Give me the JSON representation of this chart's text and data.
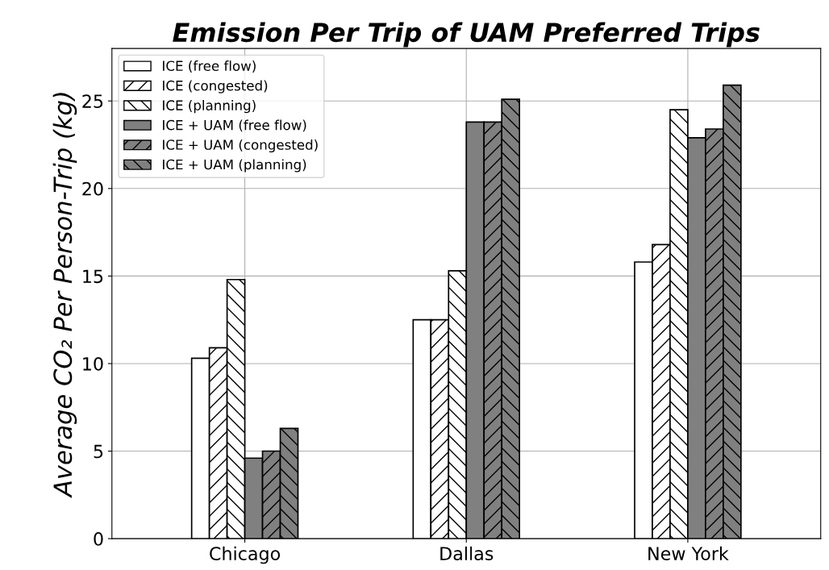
{
  "chart_data": {
    "type": "bar",
    "title": "Emission Per Trip of UAM Preferred Trips",
    "ylabel": "Average CO₂ Per Person-Trip (kg)",
    "categories": [
      "Chicago",
      "Dallas",
      "New York"
    ],
    "series": [
      {
        "name": "ICE (free flow)",
        "color": "#ffffff",
        "values": [
          10.3,
          12.5,
          15.8
        ]
      },
      {
        "name": "ICE (congested)",
        "color": "#ffffff",
        "values": [
          10.9,
          12.5,
          16.8
        ]
      },
      {
        "name": "ICE (planning)",
        "color": "#ffffff",
        "values": [
          14.8,
          15.3,
          24.5
        ]
      },
      {
        "name": "ICE + UAM (free flow)",
        "color": "#808080",
        "values": [
          4.6,
          23.8,
          22.9
        ]
      },
      {
        "name": "ICE + UAM (congested)",
        "color": "#808080",
        "values": [
          5.0,
          23.8,
          23.4
        ]
      },
      {
        "name": "ICE + UAM (planning)",
        "color": "#808080",
        "values": [
          6.3,
          25.1,
          25.9
        ]
      }
    ],
    "ylim": [
      0,
      28
    ],
    "yticks": [
      0,
      5,
      10,
      15,
      20,
      25
    ],
    "grid": true,
    "legend": "top left"
  }
}
